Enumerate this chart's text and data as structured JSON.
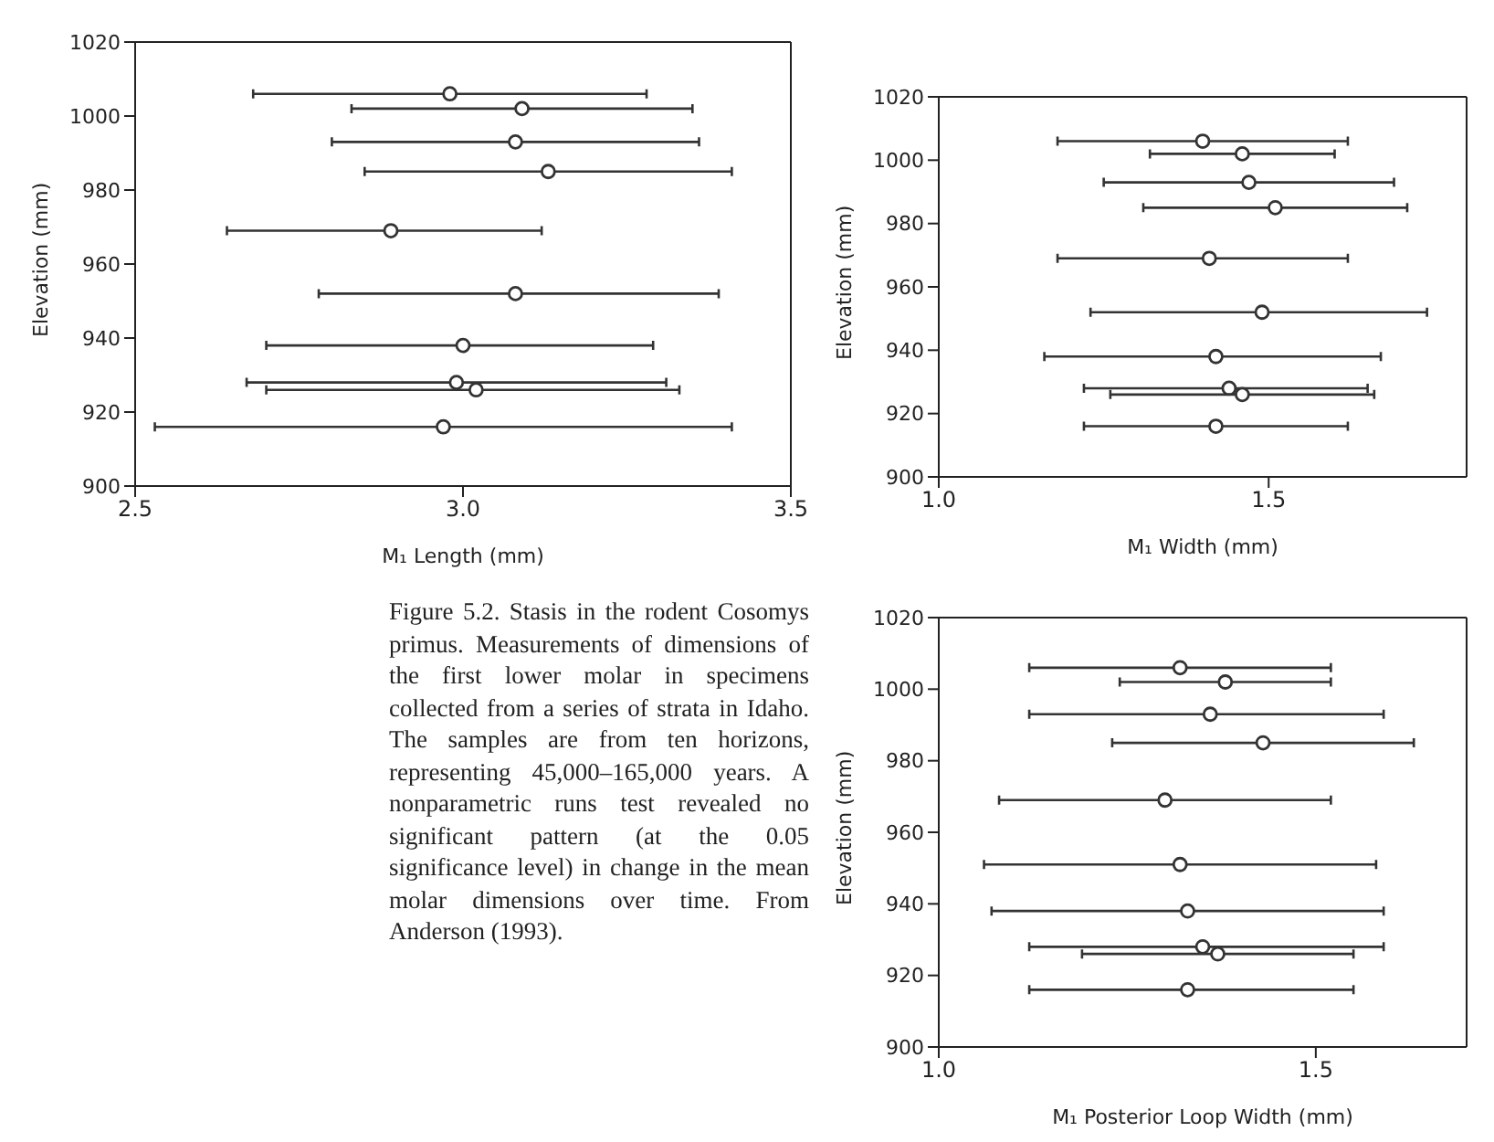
{
  "chart_data": [
    {
      "type": "scatter",
      "xlabel": "M₁ Length (mm)",
      "ylabel": "Elevation (mm)",
      "marker": "circle",
      "xlim": [
        2.5,
        3.5
      ],
      "xticks": [
        2.5,
        {
          "value": 3,
          "label": "3.0"
        },
        3.5
      ],
      "ylim": [
        900,
        1020
      ],
      "yticks": [
        900,
        920,
        940,
        960,
        980,
        1000,
        1020
      ],
      "series": [
        {
          "color": "#333333",
          "x": [
            2.98,
            3.09,
            3.08,
            3.13,
            2.89,
            3.08,
            3.0,
            2.99,
            3.02,
            2.97
          ],
          "values": [
            1006,
            1002,
            993,
            985,
            969,
            952,
            938,
            928,
            926,
            916
          ],
          "xerrors": [
            [
              2.68,
              3.28
            ],
            [
              2.83,
              3.35
            ],
            [
              2.8,
              3.36
            ],
            [
              2.85,
              3.41
            ],
            [
              2.64,
              3.12
            ],
            [
              2.78,
              3.39
            ],
            [
              2.7,
              3.29
            ],
            [
              2.67,
              3.31
            ],
            [
              2.7,
              3.33
            ],
            [
              2.53,
              3.41
            ]
          ]
        }
      ]
    },
    {
      "type": "scatter",
      "xlabel": "M₁ Width (mm)",
      "ylabel": "Elevation (mm)",
      "marker": "circle",
      "xlim": [
        1.0,
        1.8
      ],
      "xticks": [
        {
          "value": 1,
          "label": "1.0"
        },
        {
          "value": 1.5,
          "label": "1.5"
        }
      ],
      "ylim": [
        900,
        1020
      ],
      "yticks": [
        900,
        920,
        940,
        960,
        980,
        1000,
        1020
      ],
      "series": [
        {
          "color": "#333333",
          "x": [
            1.4,
            1.46,
            1.47,
            1.51,
            1.41,
            1.49,
            1.42,
            1.44,
            1.46,
            1.42
          ],
          "values": [
            1006,
            1002,
            993,
            985,
            969,
            952,
            938,
            928,
            926,
            916
          ],
          "xerrors": [
            [
              1.18,
              1.62
            ],
            [
              1.32,
              1.6
            ],
            [
              1.25,
              1.69
            ],
            [
              1.31,
              1.71
            ],
            [
              1.18,
              1.62
            ],
            [
              1.23,
              1.74
            ],
            [
              1.16,
              1.67
            ],
            [
              1.22,
              1.65
            ],
            [
              1.26,
              1.66
            ],
            [
              1.22,
              1.62
            ]
          ]
        }
      ]
    },
    {
      "type": "other",
      "annotations": [
        "Figure 5.2. Stasis in the rodent Cosomys primus. Measurements of dimensions of the first lower molar in specimens collected from a series of strata in Idaho. The samples are from ten horizons, representing 45,000–165,000 years. A nonparametric runs test revealed no significant pattern (at the 0.05 significance level) in change in the mean molar dimensions over time. From Anderson (1993)."
      ]
    },
    {
      "type": "scatter",
      "xlabel": "M₁ Posterior Loop Width (mm)",
      "ylabel": "Elevation (mm)",
      "marker": "circle",
      "xlim": [
        1.0,
        1.7
      ],
      "xticks": [
        {
          "value": 1,
          "label": "1.0"
        },
        {
          "value": 1.5,
          "label": "1.5"
        }
      ],
      "ylim": [
        900,
        1020
      ],
      "yticks": [
        900,
        920,
        940,
        960,
        980,
        1000,
        1020
      ],
      "series": [
        {
          "color": "#333333",
          "x": [
            1.32,
            1.38,
            1.36,
            1.43,
            1.3,
            1.32,
            1.33,
            1.35,
            1.37,
            1.33
          ],
          "values": [
            1006,
            1002,
            993,
            985,
            969,
            951,
            938,
            928,
            926,
            916
          ],
          "xerrors": [
            [
              1.12,
              1.52
            ],
            [
              1.24,
              1.52
            ],
            [
              1.12,
              1.59
            ],
            [
              1.23,
              1.63
            ],
            [
              1.08,
              1.52
            ],
            [
              1.06,
              1.58
            ],
            [
              1.07,
              1.59
            ],
            [
              1.12,
              1.59
            ],
            [
              1.19,
              1.55
            ],
            [
              1.12,
              1.55
            ]
          ]
        }
      ]
    }
  ]
}
